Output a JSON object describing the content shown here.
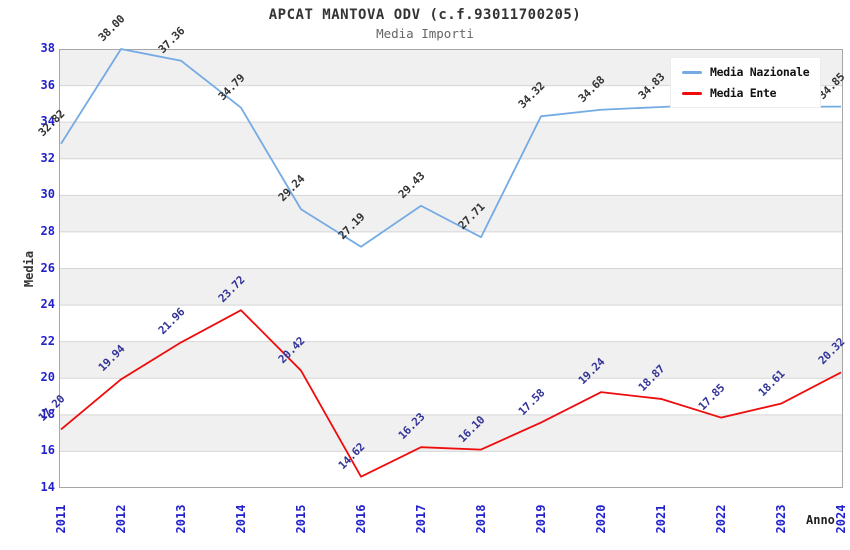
{
  "chart_data": {
    "type": "line",
    "title": "APCAT MANTOVA ODV (c.f.93011700205)",
    "subtitle": "Media Importi",
    "xlabel": "Anno",
    "ylabel": "Media",
    "categories": [
      "2011",
      "2012",
      "2013",
      "2014",
      "2015",
      "2016",
      "2017",
      "2018",
      "2019",
      "2020",
      "2021",
      "2022",
      "2023",
      "2024"
    ],
    "ylim": [
      14,
      38
    ],
    "yticks": [
      14,
      16,
      18,
      20,
      22,
      24,
      26,
      28,
      30,
      32,
      34,
      36,
      38
    ],
    "grid": "alternating horizontal gray bands every 2 units with light gridlines, full frame",
    "legend_position": "top-right-inside",
    "series": [
      {
        "name": "Media Nazionale",
        "color": "#74abe4",
        "values": [
          32.82,
          38.0,
          37.36,
          34.79,
          29.24,
          27.19,
          29.43,
          27.71,
          34.32,
          34.68,
          34.83,
          34.97,
          34.84,
          34.85
        ],
        "labels": [
          "32.82",
          "38.00",
          "37.36",
          "34.79",
          "29.24",
          "27.19",
          "29.43",
          "27.71",
          "34.32",
          "34.68",
          "34.83",
          null,
          null,
          "34.85"
        ],
        "label_color": "#333333",
        "note": "2022 and 2023 point labels are hidden behind the legend box; those two values are estimated from the line position"
      },
      {
        "name": "Media Ente",
        "color": "#ee0c0c",
        "values": [
          17.2,
          19.94,
          21.96,
          23.72,
          20.42,
          14.62,
          16.23,
          16.1,
          17.58,
          19.24,
          18.87,
          17.85,
          18.61,
          20.32
        ],
        "labels": [
          "17.20",
          "19.94",
          "21.96",
          "23.72",
          "20.42",
          "14.62",
          "16.23",
          "16.10",
          "17.58",
          "19.24",
          "18.87",
          "17.85",
          "18.61",
          "20.32"
        ],
        "label_color": "#333399"
      }
    ],
    "colors": {
      "axis_tick_labels": "#2222cc",
      "band_fill": "#f0f0f0",
      "gridline": "#d6d6d6",
      "frame": "#a6a6a6",
      "title": "#333333",
      "subtitle": "#666666",
      "legend_text": "#111111",
      "background": "#ffffff"
    }
  }
}
